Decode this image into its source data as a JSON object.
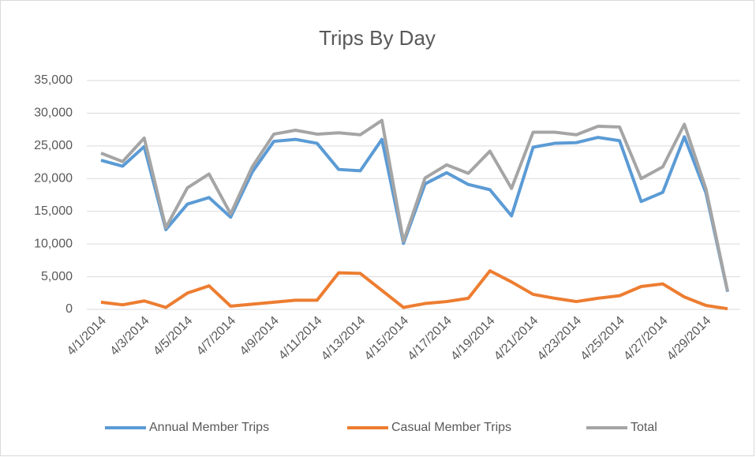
{
  "chart_data": {
    "type": "line",
    "title": "Trips By Day",
    "categories": [
      "4/1/2014",
      null,
      "4/3/2014",
      null,
      "4/5/2014",
      null,
      "4/7/2014",
      null,
      "4/9/2014",
      null,
      "4/11/2014",
      null,
      "4/13/2014",
      null,
      "4/15/2014",
      null,
      "4/17/2014",
      null,
      "4/19/2014",
      null,
      "4/21/2014",
      null,
      "4/23/2014",
      null,
      "4/25/2014",
      null,
      "4/27/2014",
      null,
      "4/29/2014",
      null
    ],
    "series": [
      {
        "name": "Annual Member Trips",
        "color": "#5b9bd5",
        "values": [
          22800,
          21900,
          24900,
          12200,
          16100,
          17100,
          14100,
          21000,
          25700,
          26000,
          25400,
          21400,
          21200,
          26000,
          10100,
          19200,
          20900,
          19100,
          18300,
          14300,
          24800,
          25400,
          25500,
          26300,
          25800,
          16500,
          17900,
          26400,
          17800,
          2700
        ]
      },
      {
        "name": "Casual Member Trips",
        "color": "#ed7d31",
        "values": [
          1100,
          700,
          1300,
          300,
          2500,
          3600,
          500,
          800,
          1100,
          1400,
          1400,
          5600,
          5500,
          2900,
          300,
          900,
          1200,
          1700,
          5900,
          4200,
          2300,
          1700,
          1200,
          1700,
          2100,
          3500,
          3900,
          1900,
          600,
          100
        ]
      },
      {
        "name": "Total",
        "color": "#a5a5a5",
        "values": [
          23900,
          22600,
          26200,
          12500,
          18600,
          20700,
          14600,
          21800,
          26800,
          27400,
          26800,
          27000,
          26700,
          28900,
          10400,
          20100,
          22100,
          20800,
          24200,
          18500,
          27100,
          27100,
          26700,
          28000,
          27900,
          20000,
          21800,
          28300,
          18400,
          2800
        ]
      }
    ],
    "ylim": [
      0,
      35000
    ],
    "yticks": [
      0,
      {
        "value": 5000,
        "label": "5,000"
      },
      {
        "value": 10000,
        "label": "10,000"
      },
      {
        "value": 15000,
        "label": "15,000"
      },
      {
        "value": 20000,
        "label": "20,000"
      },
      {
        "value": 25000,
        "label": "25,000"
      },
      {
        "value": 30000,
        "label": "30,000"
      },
      {
        "value": 35000,
        "label": "35,000"
      }
    ],
    "grid": true,
    "legend": "bottom"
  }
}
